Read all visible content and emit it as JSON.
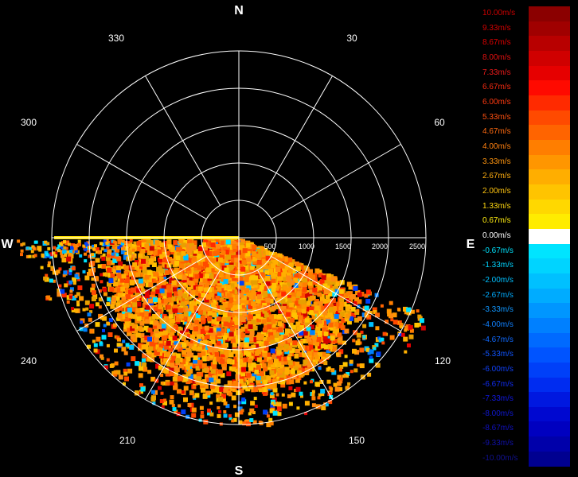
{
  "compass": {
    "north": "N",
    "east": "E",
    "south": "S",
    "west": "W"
  },
  "bearings": [
    "30",
    "60",
    "120",
    "150",
    "210",
    "240",
    "300",
    "330"
  ],
  "range_rings": [
    "500",
    "1000",
    "1500",
    "2000",
    "2500"
  ],
  "legend": [
    {
      "label": "10.00m/s",
      "color": "#8b0000",
      "text_color": "#cc0000"
    },
    {
      "label": "9.33m/s",
      "color": "#a00000",
      "text_color": "#d40000"
    },
    {
      "label": "8.67m/s",
      "color": "#b80000",
      "text_color": "#dc0000"
    },
    {
      "label": "8.00m/s",
      "color": "#d00000",
      "text_color": "#e41010"
    },
    {
      "label": "7.33m/s",
      "color": "#e60000",
      "text_color": "#ec1a1a"
    },
    {
      "label": "6.67m/s",
      "color": "#ff0a00",
      "text_color": "#f52a10"
    },
    {
      "label": "6.00m/s",
      "color": "#ff2a00",
      "text_color": "#ff3a10"
    },
    {
      "label": "5.33m/s",
      "color": "#ff4a00",
      "text_color": "#ff5010"
    },
    {
      "label": "4.67m/s",
      "color": "#ff6400",
      "text_color": "#ff6a10"
    },
    {
      "label": "4.00m/s",
      "color": "#ff7e00",
      "text_color": "#ff8010"
    },
    {
      "label": "3.33m/s",
      "color": "#ff9600",
      "text_color": "#ff9610"
    },
    {
      "label": "2.67m/s",
      "color": "#ffae00",
      "text_color": "#ffae10"
    },
    {
      "label": "2.00m/s",
      "color": "#ffc400",
      "text_color": "#ffc410"
    },
    {
      "label": "1.33m/s",
      "color": "#ffd800",
      "text_color": "#ffd810"
    },
    {
      "label": "0.67m/s",
      "color": "#ffec00",
      "text_color": "#ffec10"
    },
    {
      "label": "0.00m/s",
      "color": "#ffffff",
      "text_color": "#ffffff"
    },
    {
      "label": "-0.67m/s",
      "color": "#00e4ff",
      "text_color": "#00e4ff"
    },
    {
      "label": "-1.33m/s",
      "color": "#00d4ff",
      "text_color": "#00d4ff"
    },
    {
      "label": "-2.00m/s",
      "color": "#00c0ff",
      "text_color": "#00c0ff"
    },
    {
      "label": "-2.67m/s",
      "color": "#00acff",
      "text_color": "#00acff"
    },
    {
      "label": "-3.33m/s",
      "color": "#0096ff",
      "text_color": "#1096ff"
    },
    {
      "label": "-4.00m/s",
      "color": "#0080ff",
      "text_color": "#1080ff"
    },
    {
      "label": "-4.67m/s",
      "color": "#006aff",
      "text_color": "#106aff"
    },
    {
      "label": "-5.33m/s",
      "color": "#0054ff",
      "text_color": "#1054ff"
    },
    {
      "label": "-6.00m/s",
      "color": "#0040f8",
      "text_color": "#1040f8"
    },
    {
      "label": "-6.67m/s",
      "color": "#002cf0",
      "text_color": "#102cf0"
    },
    {
      "label": "-7.33m/s",
      "color": "#0018e0",
      "text_color": "#1018e0"
    },
    {
      "label": "-8.00m/s",
      "color": "#0008d0",
      "text_color": "#1018d0"
    },
    {
      "label": "-8.67m/s",
      "color": "#0000c0",
      "text_color": "#1010c0"
    },
    {
      "label": "-9.33m/s",
      "color": "#0000aa",
      "text_color": "#1010aa"
    },
    {
      "label": "-10.00m/s",
      "color": "#000090",
      "text_color": "#101090"
    }
  ],
  "grid_color": "#ffffff",
  "background_color": "#000000"
}
